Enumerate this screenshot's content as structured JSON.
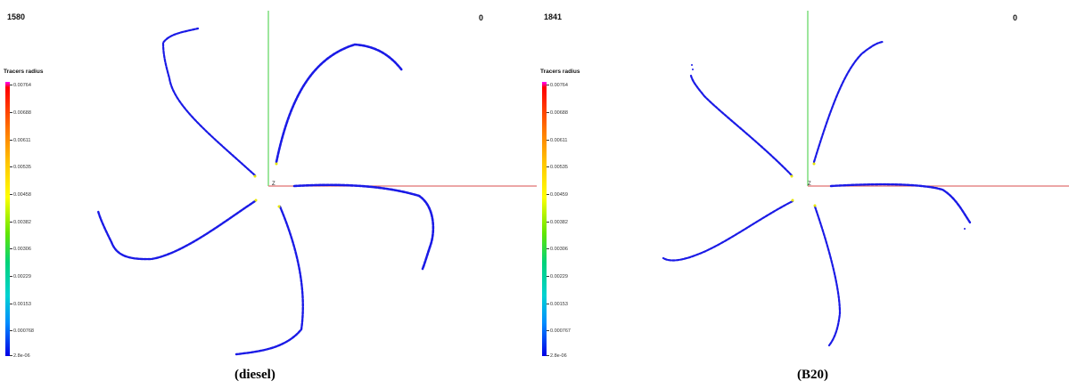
{
  "panels": [
    {
      "frame_number": "1580",
      "time_value": "0",
      "axis_label": "Z",
      "colorbar": {
        "title": "Tracers radius",
        "ticks": [
          "0.00764",
          "0.00688",
          "0.00611",
          "0.00535",
          "0.00458",
          "0.00382",
          "0.00306",
          "0.00229",
          "0.00153",
          "0.000768",
          "2.8e-06"
        ]
      },
      "caption": "(diesel)"
    },
    {
      "frame_number": "1841",
      "time_value": "0",
      "axis_label": "Z",
      "colorbar": {
        "title": "Tracers radius",
        "ticks": [
          "0.00764",
          "0.00688",
          "0.00611",
          "0.00535",
          "0.00459",
          "0.00382",
          "0.00306",
          "0.00229",
          "0.00153",
          "0.000767",
          "2.8e-06"
        ]
      },
      "caption": "(B20)"
    }
  ],
  "colors": {
    "spray": "#1a1ae6",
    "y_axis": "#5cd65c",
    "x_axis": "#e07070",
    "near_nozzle": "#e6e600"
  }
}
